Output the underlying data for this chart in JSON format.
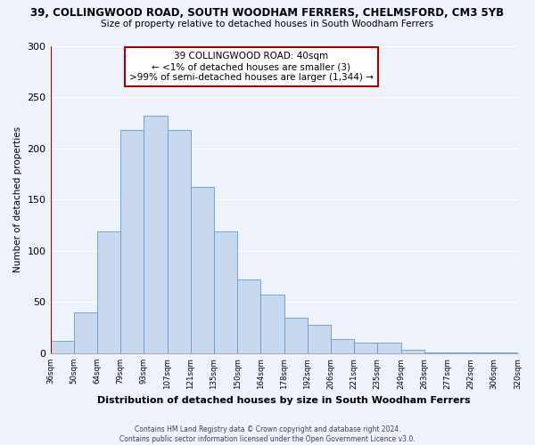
{
  "title1": "39, COLLINGWOOD ROAD, SOUTH WOODHAM FERRERS, CHELMSFORD, CM3 5YB",
  "title2": "Size of property relative to detached houses in South Woodham Ferrers",
  "xlabel": "Distribution of detached houses by size in South Woodham Ferrers",
  "ylabel": "Number of detached properties",
  "bin_labels": [
    "36sqm",
    "50sqm",
    "64sqm",
    "79sqm",
    "93sqm",
    "107sqm",
    "121sqm",
    "135sqm",
    "150sqm",
    "164sqm",
    "178sqm",
    "192sqm",
    "206sqm",
    "221sqm",
    "235sqm",
    "249sqm",
    "263sqm",
    "277sqm",
    "292sqm",
    "306sqm",
    "320sqm"
  ],
  "bar_values": [
    12,
    40,
    119,
    218,
    232,
    218,
    162,
    119,
    72,
    57,
    35,
    28,
    14,
    10,
    10,
    3,
    1,
    1,
    1,
    1
  ],
  "bar_color": "#c8d8ee",
  "bar_edge_color": "#6699cc",
  "highlight_color": "#aa0000",
  "annotation_line1": "39 COLLINGWOOD ROAD: 40sqm",
  "annotation_line2": "← <1% of detached houses are smaller (3)",
  "annotation_line3": ">99% of semi-detached houses are larger (1,344) →",
  "ylim": [
    0,
    300
  ],
  "yticks": [
    0,
    50,
    100,
    150,
    200,
    250,
    300
  ],
  "footer1": "Contains HM Land Registry data © Crown copyright and database right 2024.",
  "footer2": "Contains public sector information licensed under the Open Government Licence v3.0.",
  "background_color": "#eef2fa"
}
